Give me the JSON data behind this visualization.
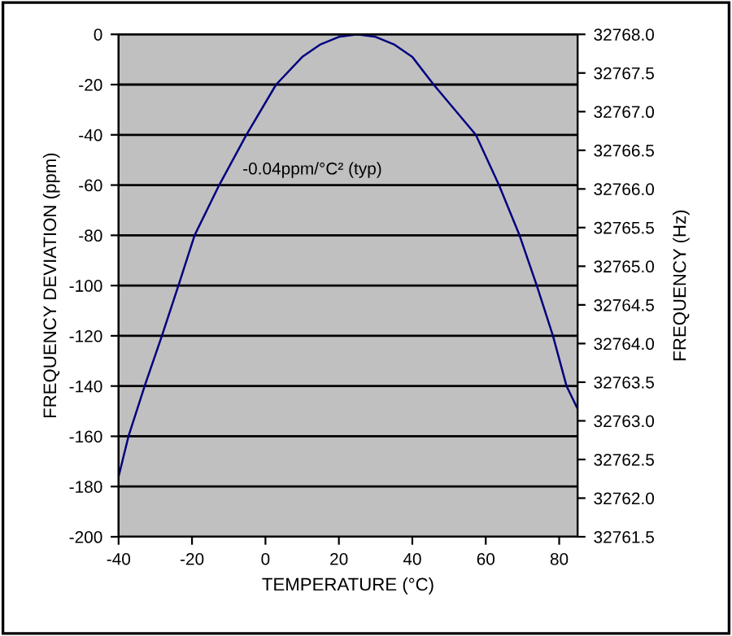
{
  "chart_data": {
    "type": "line",
    "xlabel": "TEMPERATURE (°C)",
    "ylabel": "FREQUENCY DEVIATION (ppm)",
    "y2label": "FREQUENCY (Hz)",
    "annotations": [
      "-0.04ppm/°C² (typ)"
    ],
    "series": [
      {
        "color": "#000080",
        "x": [
          -40,
          -37.3,
          -32.9,
          -28.2,
          -23.7,
          -19.3,
          -12.6,
          -5.2,
          2.9,
          10,
          15,
          20,
          25,
          30,
          35,
          40,
          45.8,
          57.3,
          63.6,
          69.2,
          73.9,
          78.3,
          82,
          85
        ],
        "values": [
          -176,
          -160,
          -140,
          -120,
          -100,
          -80,
          -60,
          -40,
          -20,
          -9,
          -4,
          -1,
          0,
          -1,
          -4,
          -9,
          -20,
          -40,
          -60,
          -80,
          -100,
          -120,
          -140,
          -149
        ]
      }
    ],
    "xlim": [
      -40,
      85
    ],
    "xticks": [
      -40,
      -20,
      0,
      20,
      40,
      60,
      80
    ],
    "ylim": [
      -200,
      0
    ],
    "yticks": [
      -200,
      -180,
      -160,
      -140,
      -120,
      -100,
      -80,
      -60,
      -40,
      -20,
      0
    ],
    "y2lim": [
      32761.5,
      32768.0
    ],
    "y2ticks": [
      32761.5,
      {
        "value": 32762,
        "label": "32762.0"
      },
      32762.5,
      {
        "value": 32763,
        "label": "32763.0"
      },
      32763.5,
      {
        "value": 32764,
        "label": "32764.0"
      },
      32764.5,
      {
        "value": 32765,
        "label": "32765.0"
      },
      32765.5,
      {
        "value": 32766,
        "label": "32766.0"
      },
      32766.5,
      {
        "value": 32767,
        "label": "32767.0"
      },
      32767.5,
      {
        "value": 32768,
        "label": "32768.0"
      }
    ],
    "grid": "y",
    "legend": false,
    "marker": "none",
    "line_style": "solid"
  }
}
